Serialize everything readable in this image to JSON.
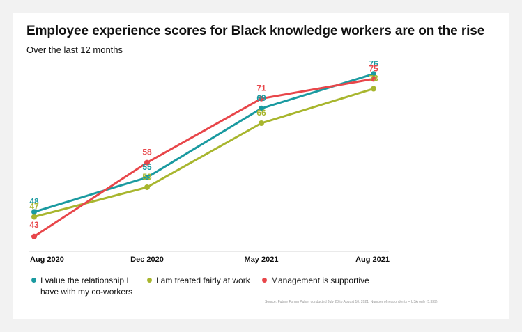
{
  "chart_data": {
    "type": "line",
    "title": "Employee experience scores for Black knowledge workers are on the rise",
    "subtitle": "Over the last 12 months",
    "categories": [
      "Aug 2020",
      "Dec 2020",
      "May 2021",
      "Aug 2021"
    ],
    "ylim": [
      40,
      80
    ],
    "grid": false,
    "series": [
      {
        "name": "I value the relationship I have with my co-workers",
        "legend_lines": [
          "I value the relationship I",
          "have with my co-workers"
        ],
        "color": "#1a9aa0",
        "values": [
          48,
          55,
          69,
          76
        ]
      },
      {
        "name": "I am treated fairly at work",
        "legend_lines": [
          "I am treated fairly at work"
        ],
        "color": "#a8b62e",
        "values": [
          47,
          53,
          66,
          73
        ]
      },
      {
        "name": "Management is supportive",
        "legend_lines": [
          "Management is supportive"
        ],
        "color": "#e8464a",
        "values": [
          43,
          58,
          71,
          75
        ]
      }
    ],
    "source": "Source: Future Forum Pulse, conducted July 28 to August 10, 2021. Number of respondents = USA only (5,339)."
  }
}
